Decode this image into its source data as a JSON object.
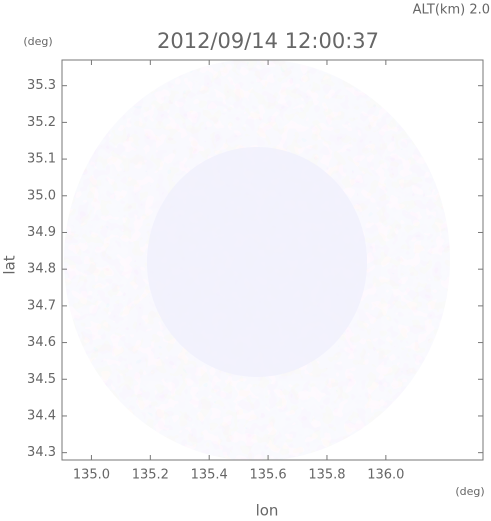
{
  "chart_data": {
    "type": "radar-map",
    "title": "2012/09/14 12:00:37",
    "annotation": "ALT(km) 2.0",
    "x_label": "lon",
    "y_label": "lat",
    "x_unit": "(deg)",
    "y_unit": "(deg)",
    "xlim": [
      134.9,
      136.33
    ],
    "ylim": [
      34.28,
      35.37
    ],
    "xticks": [
      {
        "value": 135.0,
        "label": "135.0"
      },
      135.2,
      135.4,
      135.6,
      135.8,
      {
        "value": 136.0,
        "label": "136.0"
      }
    ],
    "yticks": [
      35.3,
      35.2,
      35.1,
      {
        "value": 35.0,
        "label": "35.0"
      },
      34.9,
      34.8,
      34.7,
      34.6,
      34.5,
      34.4,
      34.3
    ]
  }
}
